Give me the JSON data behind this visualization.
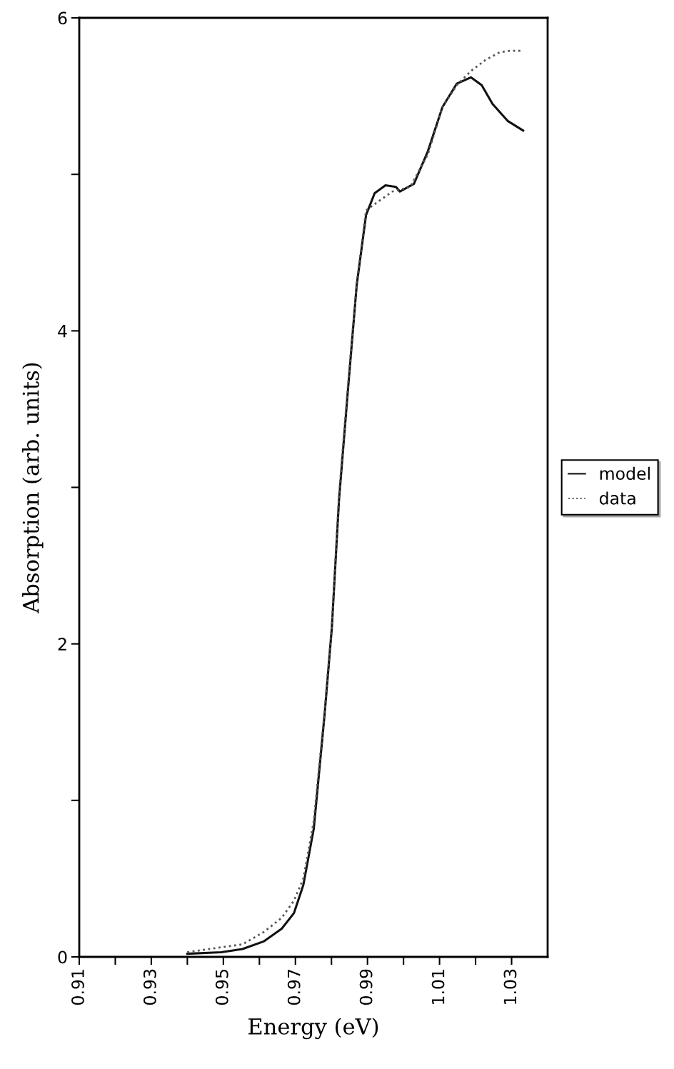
{
  "chart_data": {
    "type": "line",
    "xlabel": "Energy (eV)",
    "ylabel": "Absorption (arb. units)",
    "xlim": [
      0.91,
      1.04
    ],
    "ylim": [
      0,
      6
    ],
    "xticks": [
      0.91,
      {
        "value": 0.92,
        "label": null
      },
      0.93,
      {
        "value": 0.94,
        "label": null
      },
      0.95,
      {
        "value": 0.96,
        "label": null
      },
      0.97,
      {
        "value": 0.98,
        "label": null
      },
      0.99,
      {
        "value": 1.0,
        "label": null
      },
      1.01,
      {
        "value": 1.02,
        "label": null
      },
      1.03
    ],
    "yticks": [
      0,
      {
        "value": 1,
        "label": null
      },
      2,
      {
        "value": 3,
        "label": null
      },
      4,
      {
        "value": 5,
        "label": null
      },
      6
    ],
    "grid": false,
    "legend": "right",
    "series": [
      {
        "name": "model",
        "color": "#111111",
        "line_style": "solid",
        "x": [
          0.94,
          0.9494,
          0.9553,
          0.9613,
          0.9662,
          0.9696,
          0.9722,
          0.9751,
          0.9781,
          0.9801,
          0.9821,
          0.9845,
          0.987,
          0.9896,
          0.992,
          0.995,
          0.9979,
          0.999,
          1.0029,
          1.0068,
          1.0108,
          1.0148,
          1.0187,
          1.0217,
          1.0247,
          1.029,
          1.0332
        ],
        "values": [
          0.02,
          0.03,
          0.05,
          0.1,
          0.18,
          0.28,
          0.46,
          0.82,
          1.55,
          2.1,
          2.92,
          3.6,
          4.29,
          4.74,
          4.88,
          4.93,
          4.92,
          4.89,
          4.94,
          5.15,
          5.43,
          5.58,
          5.62,
          5.57,
          5.45,
          5.34,
          5.28
        ]
      },
      {
        "name": "data",
        "color": "#555555",
        "line_style": "dotted",
        "x": [
          0.94,
          0.9475,
          0.9553,
          0.9613,
          0.9662,
          0.9696,
          0.9722,
          0.9751,
          0.9781,
          0.9801,
          0.9821,
          0.9845,
          0.987,
          0.9896,
          0.992,
          0.9969,
          1.0019,
          1.0068,
          1.0108,
          1.0148,
          1.0187,
          1.0227,
          1.0267,
          1.0297,
          1.0332
        ],
        "values": [
          0.03,
          0.055,
          0.08,
          0.16,
          0.25,
          0.36,
          0.5,
          0.87,
          1.57,
          2.12,
          2.95,
          3.63,
          4.3,
          4.77,
          4.81,
          4.89,
          4.92,
          5.13,
          5.43,
          5.57,
          5.66,
          5.73,
          5.78,
          5.79,
          5.79
        ]
      }
    ]
  }
}
